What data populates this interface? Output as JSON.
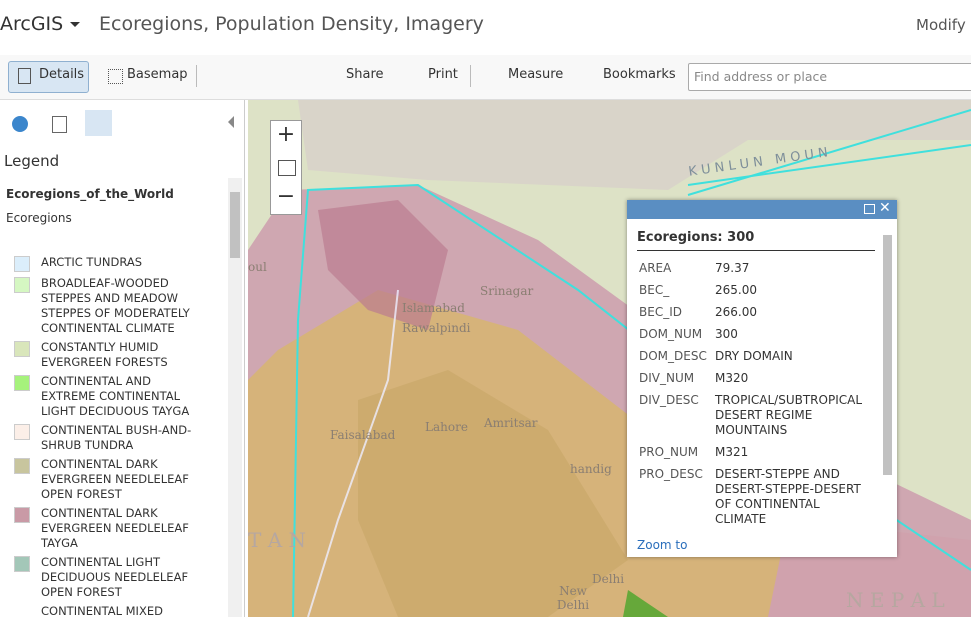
{
  "header": {
    "brand": "ArcGIS",
    "title": "Ecoregions, Population Density, Imagery",
    "modify": "Modify"
  },
  "toolbar": {
    "details": "Details",
    "basemap": "Basemap",
    "share": "Share",
    "print": "Print",
    "measure": "Measure",
    "bookmarks": "Bookmarks",
    "search_placeholder": "Find address or place"
  },
  "legend": {
    "heading": "Legend",
    "layer": "Ecoregions_of_the_World",
    "sublayer": "Ecoregions",
    "items": [
      {
        "label": "ARCTIC TUNDRAS",
        "color": "#dbeefb"
      },
      {
        "label": "BROADLEAF-WOODED STEPPES AND MEADOW STEPPES OF MODERATELY CONTINENTAL CLIMATE",
        "color": "#d5f7c2"
      },
      {
        "label": "CONSTANTLY HUMID EVERGREEN FORESTS",
        "color": "#d9e6bb"
      },
      {
        "label": "CONTINENTAL AND EXTREME CONTINENTAL LIGHT DECIDUOUS TAYGA",
        "color": "#a6f27c"
      },
      {
        "label": "CONTINENTAL BUSH-AND-SHRUB TUNDRA",
        "color": "#fcefe8"
      },
      {
        "label": "CONTINENTAL DARK EVERGREEN NEEDLELEAF OPEN FOREST",
        "color": "#c8c59e"
      },
      {
        "label": "CONTINENTAL DARK EVERGREEN NEEDLELEAF TAYGA",
        "color": "#c99aa6"
      },
      {
        "label": "CONTINENTAL LIGHT DECIDUOUS NEEDLELEAF OPEN FOREST",
        "color": "#a3c7b8"
      },
      {
        "label": "CONTINENTAL MIXED"
      }
    ]
  },
  "map_labels": [
    "K U N L U N   M O U N",
    "Srinagar",
    "Islamabad",
    "Rawalpindi",
    "Faisalabad",
    "Lahore",
    "Amritsar",
    "handig",
    "Delhi",
    "New Delhi",
    "T A N",
    "N E P A L",
    "oul"
  ],
  "popup": {
    "title": "Ecoregions: 300",
    "zoom": "Zoom to",
    "fields": [
      [
        "AREA",
        "79.37"
      ],
      [
        "BEC_",
        "265.00"
      ],
      [
        "BEC_ID",
        "266.00"
      ],
      [
        "DOM_NUM",
        "300"
      ],
      [
        "DOM_DESC",
        "DRY DOMAIN"
      ],
      [
        "DIV_NUM",
        "M320"
      ],
      [
        "DIV_DESC",
        "TROPICAL/SUBTROPICAL DESERT REGIME MOUNTAINS"
      ],
      [
        "PRO_NUM",
        "M321"
      ],
      [
        "PRO_DESC",
        "DESERT-STEPPE AND DESERT-STEPPE-DESERT OF CONTINENTAL CLIMATE"
      ]
    ]
  }
}
